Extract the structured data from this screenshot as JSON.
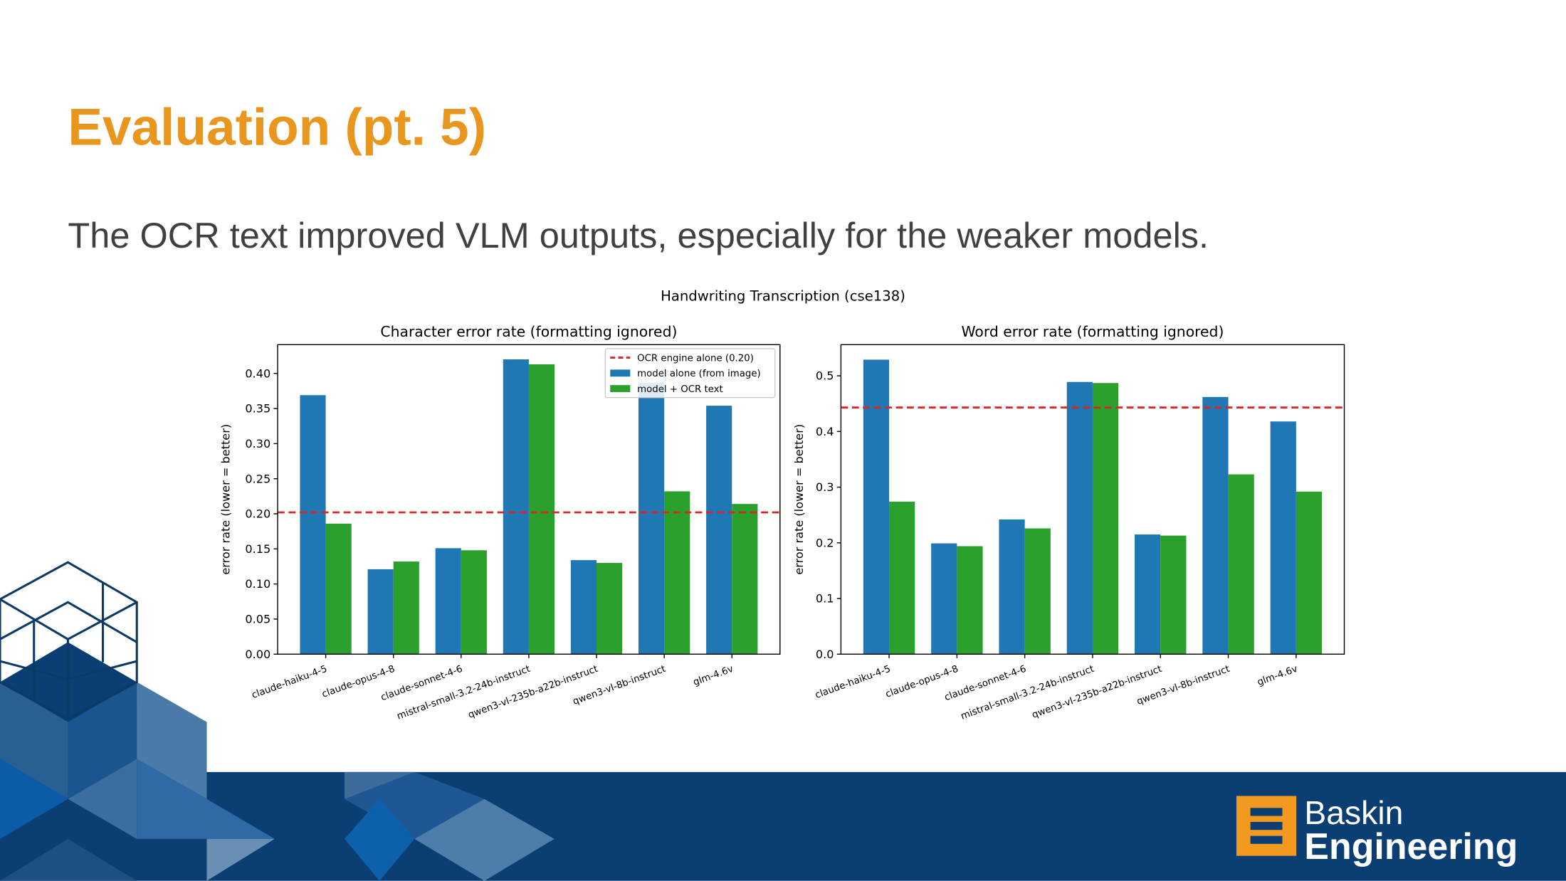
{
  "slide": {
    "title": "Evaluation (pt. 5)",
    "subtitle": "The OCR text improved VLM outputs, especially for the weaker models.",
    "figure_title": "Handwriting Transcription (cse138)",
    "logo": {
      "line1": "Baskin",
      "line2": "Engineering"
    }
  },
  "chart_data": [
    {
      "type": "bar",
      "title": "Character error rate (formatting ignored)",
      "y_label": "error rate (lower = better)",
      "categories": [
        "claude-haiku-4-5",
        "claude-opus-4-8",
        "claude-sonnet-4-6",
        "mistral-small-3.2-24b-instruct",
        "qwen3-vl-235b-a22b-instruct",
        "qwen3-vl-8b-instruct",
        "glm-4.6v"
      ],
      "series": [
        {
          "name": "model alone (from image)",
          "color": "#1f77b4",
          "values": [
            0.369,
            0.121,
            0.151,
            0.42,
            0.134,
            0.387,
            0.354
          ]
        },
        {
          "name": "model + OCR text",
          "color": "#2ca02c",
          "values": [
            0.186,
            0.132,
            0.148,
            0.413,
            0.13,
            0.232,
            0.214
          ]
        }
      ],
      "reference": {
        "label": "OCR engine alone (0.20)",
        "value": 0.202,
        "color": "#d62728"
      },
      "ylim": [
        0,
        0.441
      ],
      "yticks": [
        {
          "value": 0,
          "label": "0.00"
        },
        0.05,
        {
          "value": 0.1,
          "label": "0.10"
        },
        0.15,
        {
          "value": 0.2,
          "label": "0.20"
        },
        0.25,
        {
          "value": 0.3,
          "label": "0.30"
        },
        0.35,
        {
          "value": 0.4,
          "label": "0.40"
        }
      ],
      "legend": "upper right"
    },
    {
      "type": "bar",
      "title": "Word error rate (formatting ignored)",
      "y_label": "error rate (lower = better)",
      "categories": [
        "claude-haiku-4-5",
        "claude-opus-4-8",
        "claude-sonnet-4-6",
        "mistral-small-3.2-24b-instruct",
        "qwen3-vl-235b-a22b-instruct",
        "qwen3-vl-8b-instruct",
        "glm-4.6v"
      ],
      "series": [
        {
          "color": "#1f77b4",
          "values": [
            0.529,
            0.199,
            0.242,
            0.489,
            0.215,
            0.462,
            0.418
          ]
        },
        {
          "color": "#2ca02c",
          "values": [
            0.274,
            0.194,
            0.226,
            0.487,
            0.213,
            0.323,
            0.292
          ]
        }
      ],
      "reference": {
        "value": 0.443,
        "color": "#d62728"
      },
      "ylim": [
        0,
        0.556
      ],
      "yticks": [
        {
          "value": 0,
          "label": "0.0"
        },
        0.1,
        0.2,
        0.3,
        0.4,
        0.5
      ]
    }
  ]
}
